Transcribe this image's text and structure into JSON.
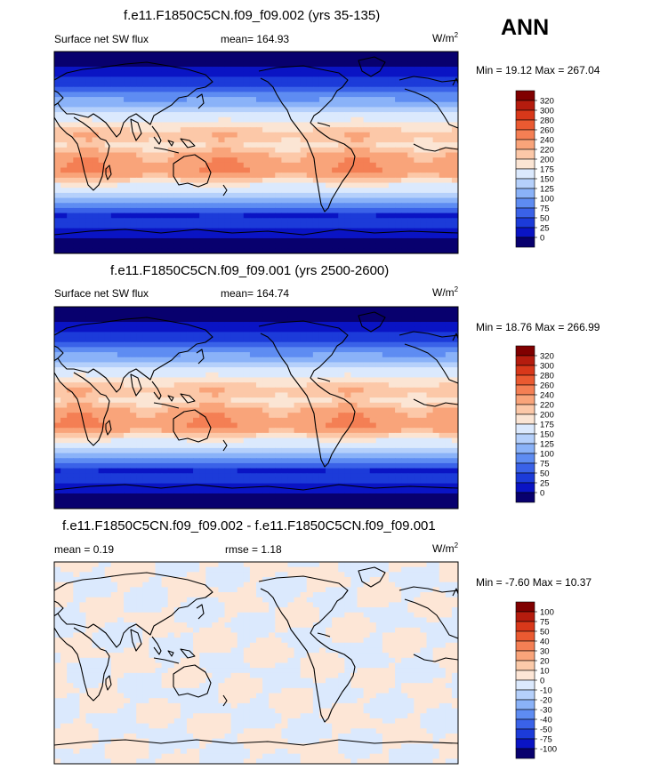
{
  "season": "ANN",
  "palette_pos": [
    "#08006e",
    "#0a14c4",
    "#1c3bd9",
    "#3a62e8",
    "#5e8cf2",
    "#8ab2f8",
    "#b5d0fb",
    "#dbe9fd",
    "#fbe5d4",
    "#fcc8a8",
    "#f9a47a",
    "#f47f54",
    "#ea5a31",
    "#d8381a",
    "#b51c0e",
    "#800000"
  ],
  "palette_diff": [
    "#08006e",
    "#0a14c4",
    "#1c3bd9",
    "#3a62e8",
    "#5e8cf2",
    "#8ab2f8",
    "#b5d0fb",
    "#dbe9fd",
    "#fde6d6",
    "#fbcaa9",
    "#f9a47a",
    "#f47f54",
    "#ea5a31",
    "#d8381a",
    "#b51c0e",
    "#800000"
  ],
  "panels": [
    {
      "title": "f.e11.F1850C5CN.f09_f09.002 (yrs 35-135)",
      "variable": "Surface net SW flux",
      "mean_text": "mean= 164.93",
      "units": "W/m",
      "units_sup": "2",
      "minmax": "Min =  19.12 Max = 267.04",
      "colorbar_ticks": [
        "320",
        "300",
        "280",
        "260",
        "240",
        "220",
        "200",
        "175",
        "150",
        "125",
        "100",
        "75",
        "50",
        "25",
        "0"
      ]
    },
    {
      "title": "f.e11.F1850C5CN.f09_f09.001 (yrs 2500-2600)",
      "variable": "Surface net SW flux",
      "mean_text": "mean= 164.74",
      "units": "W/m",
      "units_sup": "2",
      "minmax": "Min =  18.76 Max = 266.99",
      "colorbar_ticks": [
        "320",
        "300",
        "280",
        "260",
        "240",
        "220",
        "200",
        "175",
        "150",
        "125",
        "100",
        "75",
        "50",
        "25",
        "0"
      ]
    },
    {
      "title": "f.e11.F1850C5CN.f09_f09.002 - f.e11.F1850C5CN.f09_f09.001",
      "mean_text": "mean =   0.19",
      "rmse_text": "rmse =    1.18",
      "units": "W/m",
      "units_sup": "2",
      "minmax": "Min =  -7.60 Max =  10.37",
      "colorbar_ticks": [
        "100",
        "75",
        "50",
        "40",
        "30",
        "20",
        "10",
        "0",
        "-10",
        "-20",
        "-30",
        "-40",
        "-50",
        "-75",
        "-100"
      ]
    }
  ],
  "chart_data": [
    {
      "type": "heatmap",
      "title": "f.e11.F1850C5CN.f09_f09.002 (yrs 35-135)",
      "variable": "Surface net SW flux",
      "units": "W/m2",
      "mean": 164.93,
      "min": 19.12,
      "max": 267.04,
      "levels": [
        0,
        25,
        50,
        75,
        100,
        125,
        150,
        175,
        200,
        220,
        240,
        260,
        280,
        300,
        320
      ]
    },
    {
      "type": "heatmap",
      "title": "f.e11.F1850C5CN.f09_f09.001 (yrs 2500-2600)",
      "variable": "Surface net SW flux",
      "units": "W/m2",
      "mean": 164.74,
      "min": 18.76,
      "max": 266.99,
      "levels": [
        0,
        25,
        50,
        75,
        100,
        125,
        150,
        175,
        200,
        220,
        240,
        260,
        280,
        300,
        320
      ]
    },
    {
      "type": "heatmap",
      "title": "f.e11.F1850C5CN.f09_f09.002 - f.e11.F1850C5CN.f09_f09.001",
      "units": "W/m2",
      "mean": 0.19,
      "rmse": 1.18,
      "min": -7.6,
      "max": 10.37,
      "levels": [
        -100,
        -75,
        -50,
        -40,
        -30,
        -20,
        -10,
        0,
        10,
        20,
        30,
        40,
        50,
        75,
        100
      ]
    }
  ]
}
